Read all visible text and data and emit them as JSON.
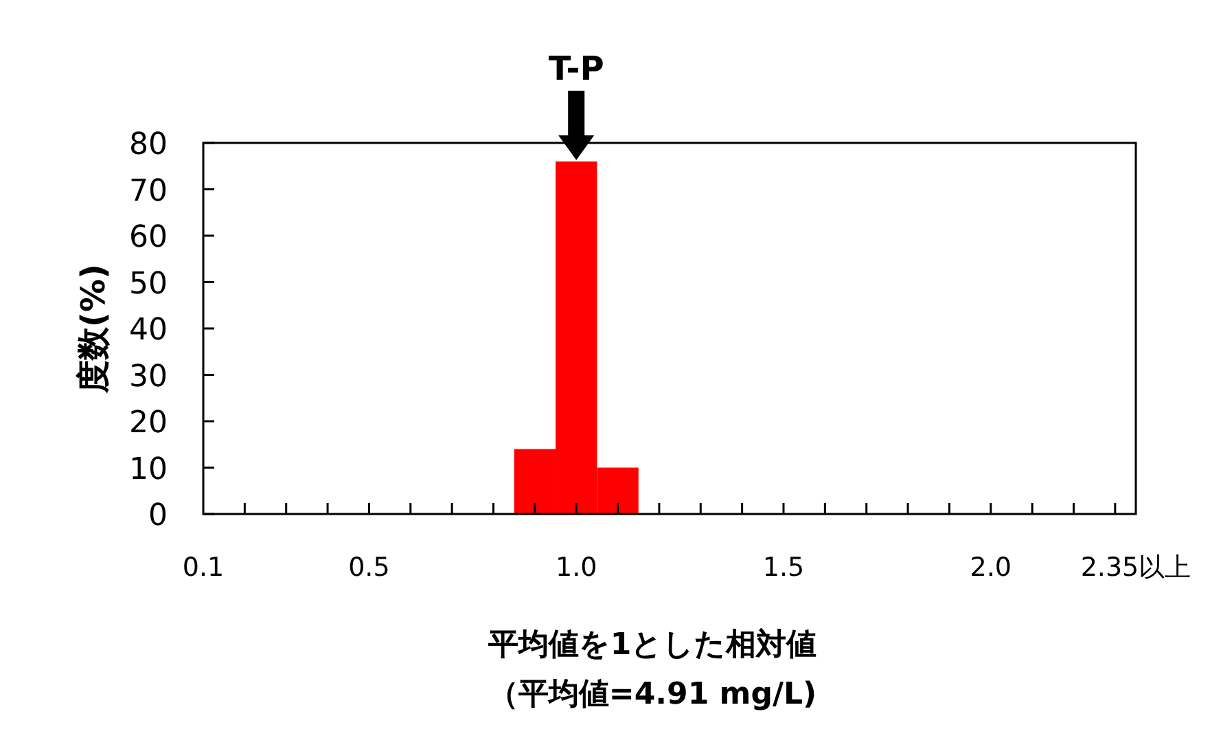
{
  "chart_data": {
    "type": "histogram",
    "xlabel": "平均値を1とした相対値",
    "ylabel": "度数(%)",
    "bins": [
      0.85,
      0.95,
      1.05,
      1.15
    ],
    "values": [
      14,
      76,
      10
    ],
    "color": "#ff0000",
    "xlim": [
      0.1,
      2.35
    ],
    "ylim": [
      0,
      80
    ],
    "yticks": [
      0,
      10,
      20,
      30,
      40,
      50,
      60,
      70,
      80
    ],
    "xticks": [
      0.1,
      {
        "value": 0.2,
        "label": null
      },
      {
        "value": 0.3,
        "label": null
      },
      {
        "value": 0.4,
        "label": null
      },
      0.5,
      {
        "value": 0.6,
        "label": null
      },
      {
        "value": 0.7,
        "label": null
      },
      {
        "value": 0.8,
        "label": null
      },
      {
        "value": 0.9,
        "label": null
      },
      {
        "value": 1,
        "label": "1.0"
      },
      {
        "value": 1.1,
        "label": null
      },
      {
        "value": 1.2,
        "label": null
      },
      {
        "value": 1.3,
        "label": null
      },
      {
        "value": 1.4,
        "label": null
      },
      1.5,
      {
        "value": 1.6,
        "label": null
      },
      {
        "value": 1.7,
        "label": null
      },
      {
        "value": 1.8,
        "label": null
      },
      {
        "value": 1.9,
        "label": null
      },
      {
        "value": 2,
        "label": "2.0"
      },
      {
        "value": 2.1,
        "label": null
      },
      {
        "value": 2.2,
        "label": null
      },
      {
        "value": 2.3,
        "label": null
      },
      {
        "value": 2.35,
        "label": "2.35以上"
      }
    ],
    "annotations": [
      {
        "text": "T-P",
        "x": 1,
        "y": 76
      },
      "（平均値=4.91 mg/L)"
    ]
  }
}
